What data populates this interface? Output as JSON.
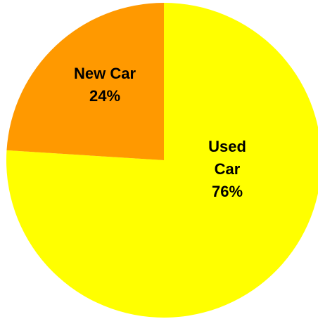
{
  "chart_data": {
    "type": "pie",
    "title": "",
    "slices": [
      {
        "label": "Used Car",
        "label_lines": [
          "Used",
          "Car"
        ],
        "value": 76,
        "value_text": "76%",
        "color": "#FFFF00"
      },
      {
        "label": "New Car",
        "label_lines": [
          "New Car"
        ],
        "value": 24,
        "value_text": "24%",
        "color": "#FF9900"
      }
    ],
    "start_angle_deg": 0,
    "direction": "clockwise",
    "legend": "none",
    "data_labels": "inside"
  }
}
